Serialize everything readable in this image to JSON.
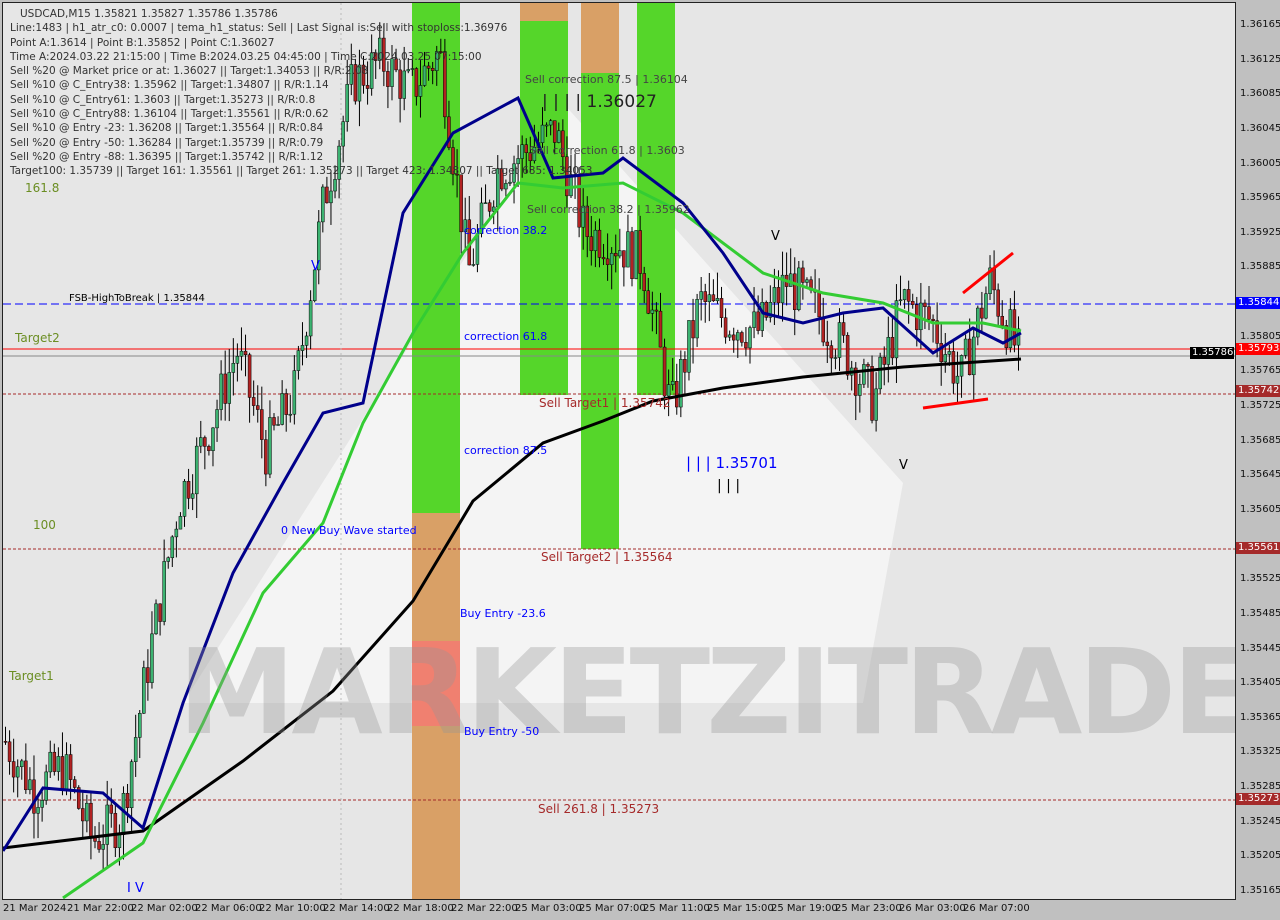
{
  "header": {
    "symbol_line": "USDCAD,M15  1.35821 1.35827 1.35786 1.35786",
    "lines": [
      "Line:1483 | h1_atr_c0: 0.0007 | tema_h1_status: Sell | Last Signal is:Sell with stoploss:1.36976",
      "Point A:1.3614 | Point B:1.35852 | Point C:1.36027",
      "Time A:2024.03.22 21:15:00 | Time B:2024.03.25 04:45:00 | Time C:2024.03.25 07:15:00",
      "Sell %20 @ Market price or at: 1.36027 || Target:1.34053 || R/R:2.08",
      "Sell %10 @ C_Entry38: 1.35962 || Target:1.34807 || R/R:1.14",
      "Sell %10 @ C_Entry61: 1.3603 || Target:1.35273 || R/R:0.8",
      "Sell %10 @ C_Entry88: 1.36104 || Target:1.35561 || R/R:0.62",
      "Sell %10 @ Entry -23: 1.36208 || Target:1.35564 || R/R:0.84",
      "Sell %20 @ Entry -50: 1.36284 || Target:1.35739 || R/R:0.79",
      "Sell %20 @ Entry -88: 1.36395 || Target:1.35742 || R/R:1.12",
      "Target100: 1.35739 || Target 161: 1.35561 || Target 261: 1.35273 || Target 423: 1.34807 || Target 685: 1.34053"
    ]
  },
  "labels": {
    "fib161": "161.8",
    "target2": "Target2",
    "fib100": "100",
    "target1": "Target1",
    "fsb": "FSB-HighToBreak | 1.35844",
    "corr38": "correction 38.2",
    "corr61": "correction 61.8",
    "corr87": "correction 87.5",
    "newbuy": "0 New Buy Wave started",
    "buy23": "Buy Entry -23.6",
    "buy50": "Buy Entry -50",
    "sell261": "Sell 261.8 | 1.35273",
    "sc87": "Sell correction 87.5 | 1.36104",
    "pc": "| | | | 1.36027",
    "sc61": "Sell correction 61.8 | 1.3603",
    "sc38": "Sell correction 38.2 | 1.35962",
    "st1": "Sell Target1 | 1.35742",
    "st2": "Sell Target2 | 1.35564",
    "pb": "| | | 1.35701",
    "bars": "| | |",
    "v": "V",
    "iv": "I V"
  },
  "watermark": "MARKETZITRADE",
  "price_axis": [
    "1.36165",
    "1.36125",
    "1.36085",
    "1.36045",
    "1.36005",
    "1.35965",
    "1.35925",
    "1.35885",
    "1.35805",
    "1.35765",
    "1.35725",
    "1.35685",
    "1.35645",
    "1.35605",
    "1.35525",
    "1.35485",
    "1.35445",
    "1.35405",
    "1.35365",
    "1.35325",
    "1.35285",
    "1.35245",
    "1.35205",
    "1.35165"
  ],
  "price_tags": [
    {
      "v": "1.35844",
      "c": "#0000ff"
    },
    {
      "v": "1.35793",
      "c": "#ff0000"
    },
    {
      "v": "1.35786",
      "c": "#000000"
    },
    {
      "v": "1.35742",
      "c": "#a52a2a"
    },
    {
      "v": "1.35561",
      "c": "#a52a2a"
    },
    {
      "v": "1.35273",
      "c": "#a52a2a"
    }
  ],
  "time_axis": [
    "21 Mar 2024",
    "21 Mar 22:00",
    "22 Mar 02:00",
    "22 Mar 06:00",
    "22 Mar 10:00",
    "22 Mar 14:00",
    "22 Mar 18:00",
    "22 Mar 22:00",
    "25 Mar 03:00",
    "25 Mar 07:00",
    "25 Mar 11:00",
    "25 Mar 15:00",
    "25 Mar 19:00",
    "25 Mar 23:00",
    "26 Mar 03:00",
    "26 Mar 07:00"
  ],
  "colors": {
    "bull": "#3cb371",
    "bear": "#b22222",
    "zone": "#55d62a",
    "zone_alt": "#d9a066"
  },
  "chart_data": {
    "type": "candlestick",
    "ylim": [
      1.35165,
      1.36185
    ],
    "closes": [
      1.35339,
      1.35282,
      1.3531,
      1.35224,
      1.3525,
      1.35443,
      1.35617,
      1.35697,
      1.3579,
      1.35674,
      1.35744,
      1.35963,
      1.36101,
      1.36125,
      1.3609,
      1.36136,
      1.35882,
      1.35998,
      1.36021,
      1.36044,
      1.35928,
      1.35917,
      1.35894,
      1.3572,
      1.35847,
      1.35824,
      1.35813,
      1.35871,
      1.35836,
      1.3579,
      1.35732,
      1.35847,
      1.35824,
      1.35755,
      1.35871,
      1.35786
    ]
  }
}
